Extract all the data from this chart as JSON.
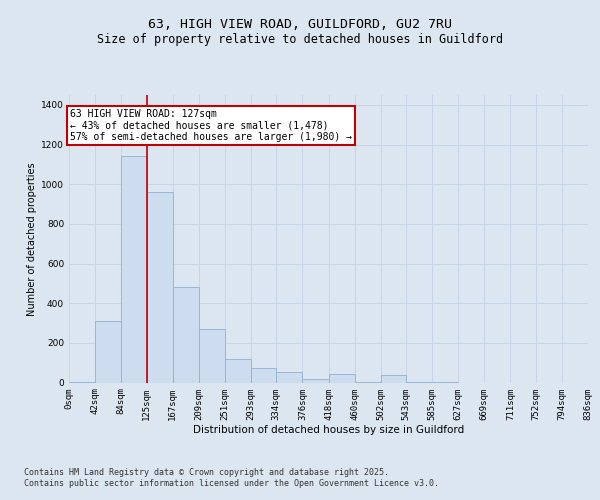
{
  "title1": "63, HIGH VIEW ROAD, GUILDFORD, GU2 7RU",
  "title2": "Size of property relative to detached houses in Guildford",
  "xlabel": "Distribution of detached houses by size in Guildford",
  "ylabel": "Number of detached properties",
  "bins": [
    0,
    42,
    84,
    125,
    167,
    209,
    251,
    293,
    334,
    376,
    418,
    460,
    502,
    543,
    585,
    627,
    669,
    711,
    752,
    794,
    836
  ],
  "bar_heights": [
    5,
    310,
    1140,
    960,
    480,
    270,
    120,
    75,
    55,
    20,
    45,
    5,
    40,
    5,
    5,
    0,
    0,
    0,
    0,
    0
  ],
  "bar_color": "#cddcee",
  "bar_edge_color": "#92afd0",
  "vline_x": 125,
  "vline_color": "#c00000",
  "annotation_text": "63 HIGH VIEW ROAD: 127sqm\n← 43% of detached houses are smaller (1,478)\n57% of semi-detached houses are larger (1,980) →",
  "annotation_box_color": "#ffffff",
  "annotation_box_edge_color": "#c00000",
  "ylim": [
    0,
    1450
  ],
  "yticks": [
    0,
    200,
    400,
    600,
    800,
    1000,
    1200,
    1400
  ],
  "grid_color": "#c8d4e8",
  "background_color": "#dce6f1",
  "plot_bg_color": "#dce6f1",
  "footer_text": "Contains HM Land Registry data © Crown copyright and database right 2025.\nContains public sector information licensed under the Open Government Licence v3.0.",
  "title_fontsize": 9.5,
  "subtitle_fontsize": 8.5,
  "annotation_fontsize": 7,
  "tick_fontsize": 6.5,
  "ylabel_fontsize": 7,
  "xlabel_fontsize": 7.5,
  "footer_fontsize": 6
}
